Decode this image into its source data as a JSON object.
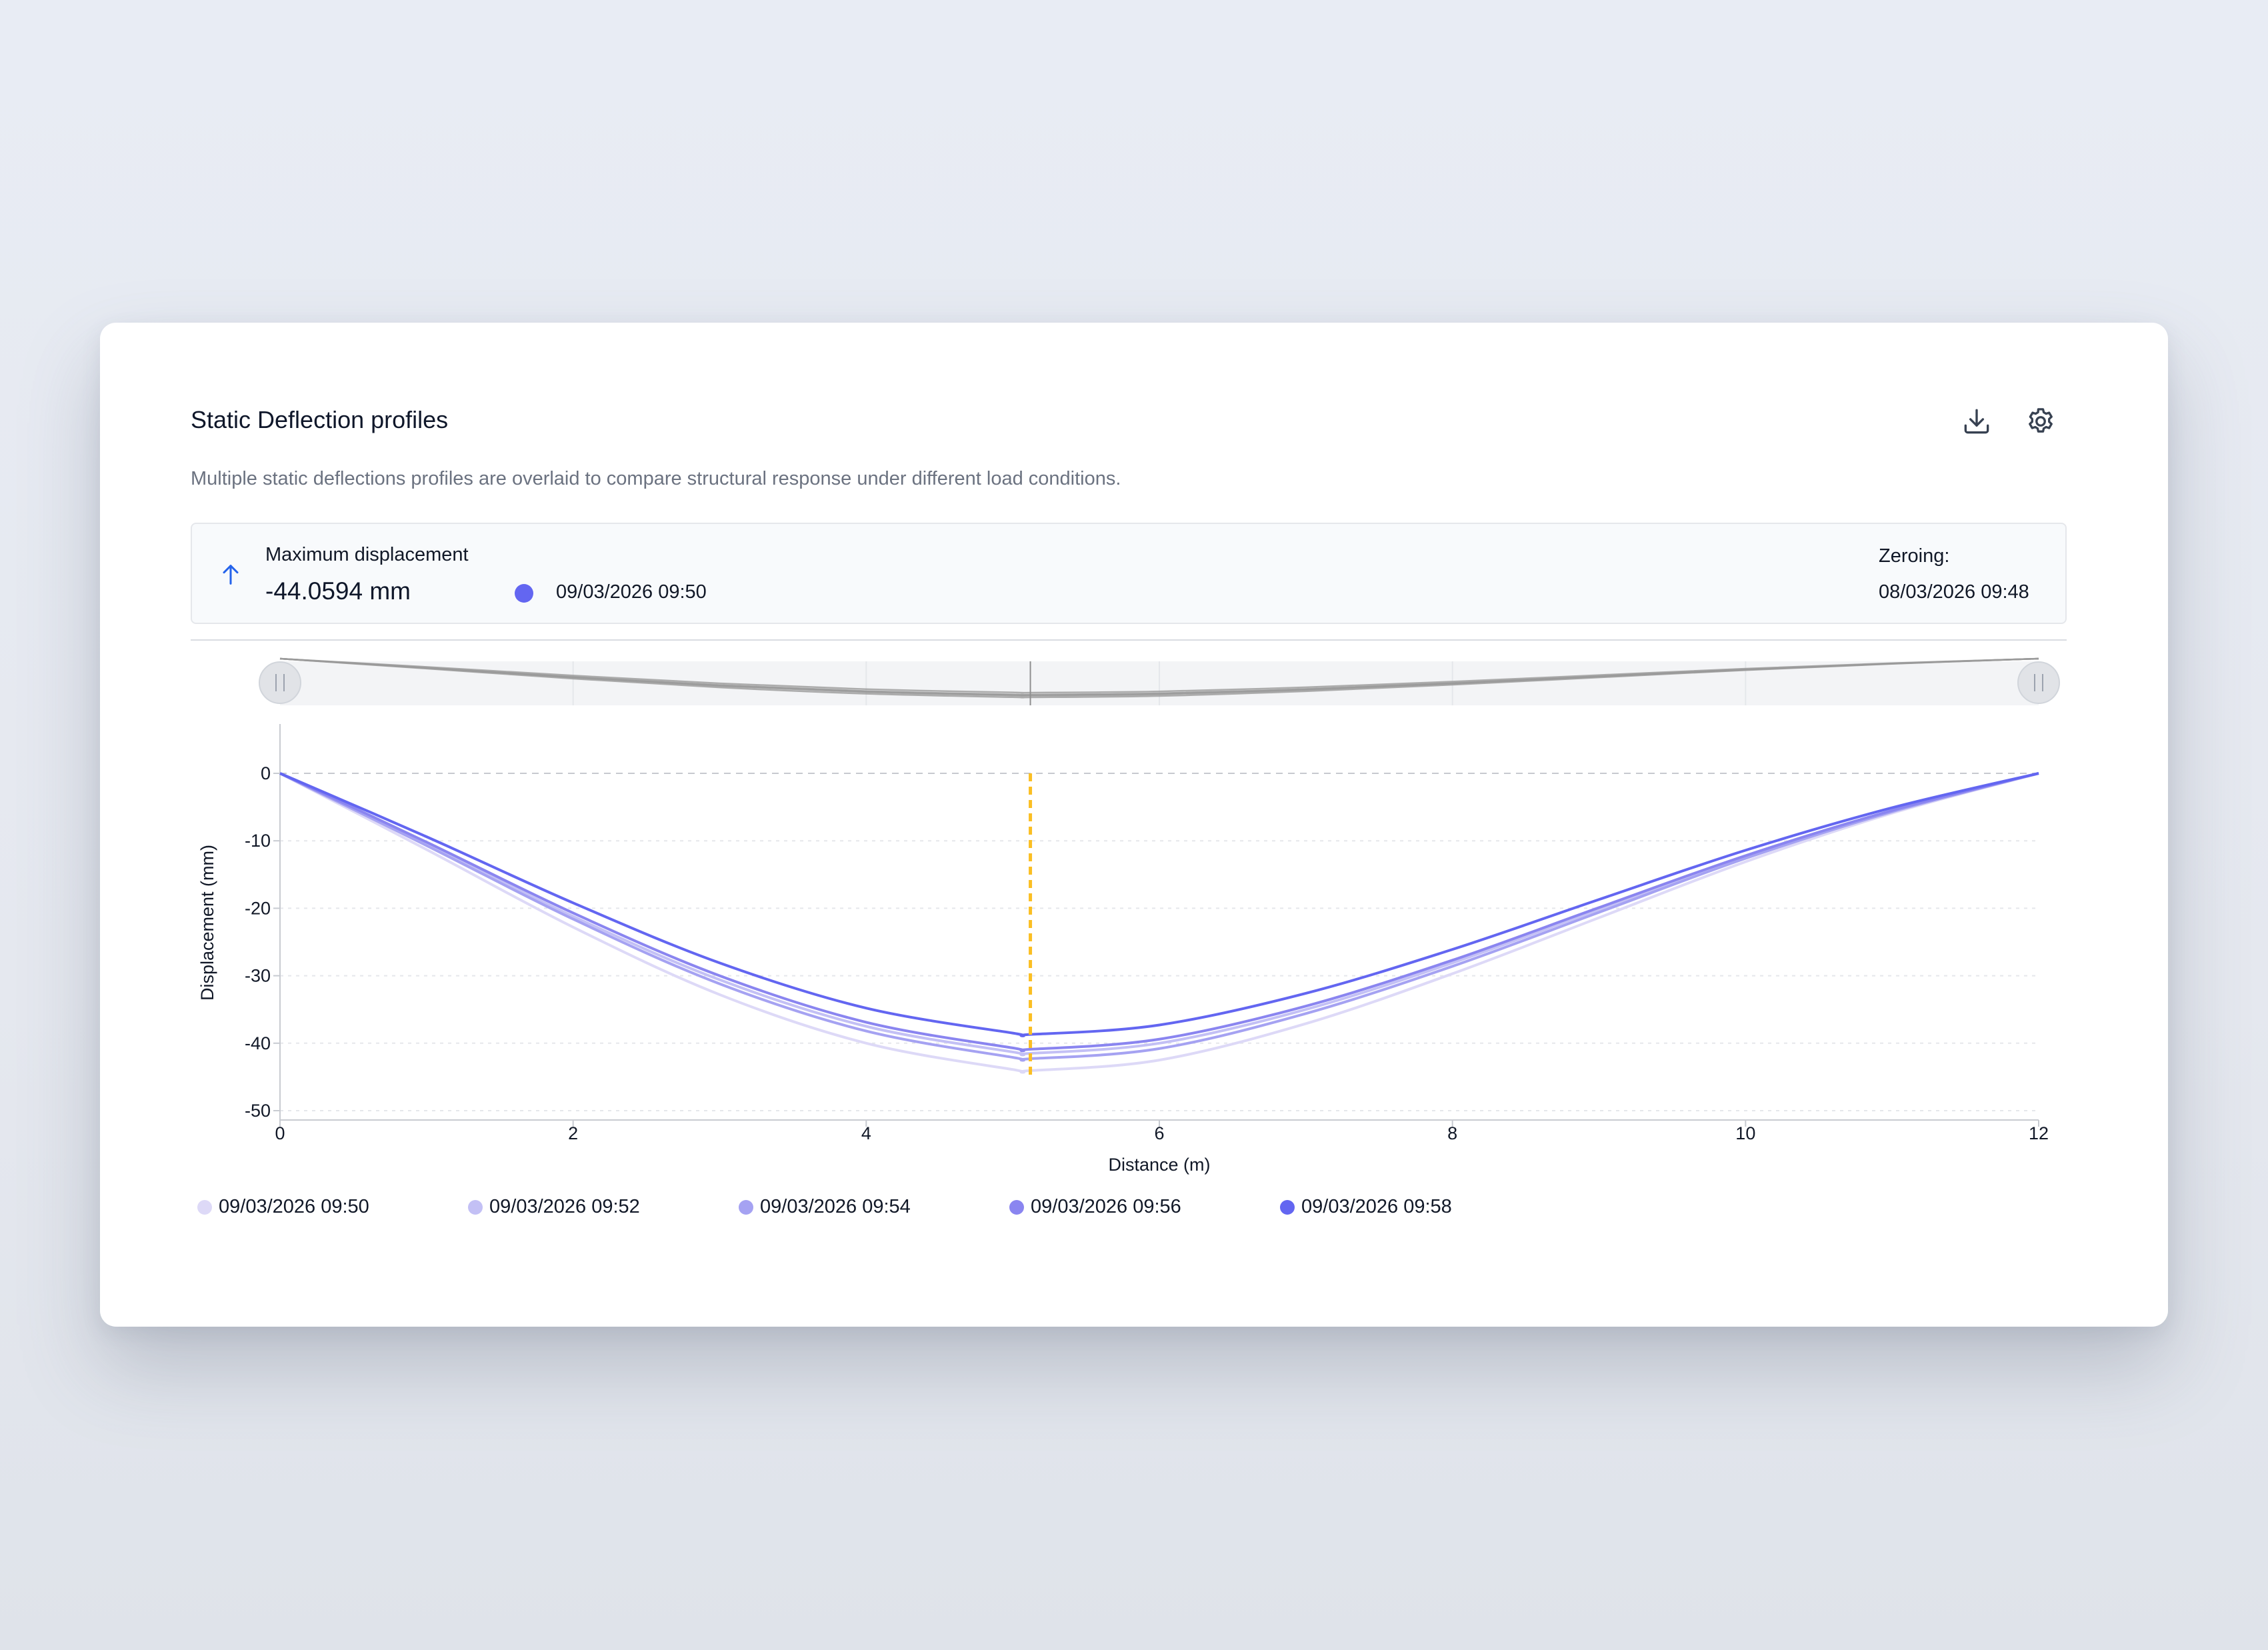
{
  "card": {
    "title": "Static Deflection profiles",
    "subtitle": "Multiple static deflections profiles are overlaid to compare structural response under different load conditions."
  },
  "toolbar": {
    "download_icon": "download-icon",
    "settings_icon": "gear-icon"
  },
  "summary": {
    "arrow_icon": "arrow-up-icon",
    "max_label": "Maximum displacement",
    "max_value": "-44.0594 mm",
    "max_time": "09/03/2026 09:50",
    "max_color": "#6366f1",
    "zeroing_label": "Zeroing:",
    "zeroing_time": "08/03/2026 09:48"
  },
  "colors": {
    "cursor_line": "#fbbf24",
    "grid": "#e5e7eb",
    "zero_line": "#c7c9cf"
  },
  "chart_data": {
    "type": "line",
    "xlabel": "Distance (m)",
    "ylabel": "Displacement (mm)",
    "xlim": [
      0,
      12
    ],
    "ylim": [
      -50,
      0
    ],
    "x_ticks": [
      "0",
      "2",
      "4",
      "6",
      "8",
      "10",
      "12"
    ],
    "y_ticks": [
      "0",
      "-10",
      "-20",
      "-30",
      "-40",
      "-50"
    ],
    "x": [
      0,
      1,
      2,
      3,
      4,
      5,
      5.12,
      6,
      7,
      8,
      9,
      10,
      11,
      12
    ],
    "series": [
      {
        "name": "09/03/2026 09:50",
        "color": "#ddd9f7",
        "values": [
          0,
          -11.3,
          -22.8,
          -32.8,
          -40.0,
          -43.9,
          -44.06,
          -42.5,
          -37.1,
          -29.7,
          -21.4,
          -13.1,
          -5.9,
          0
        ]
      },
      {
        "name": "09/03/2026 09:52",
        "color": "#c3c0f5",
        "values": [
          0,
          -10.5,
          -21.2,
          -30.6,
          -37.5,
          -41.3,
          -41.5,
          -40.0,
          -35.0,
          -28.1,
          -20.2,
          -12.4,
          -5.6,
          0
        ]
      },
      {
        "name": "09/03/2026 09:54",
        "color": "#a5a2f2",
        "values": [
          0,
          -10.7,
          -21.6,
          -31.2,
          -38.2,
          -42.1,
          -42.3,
          -40.8,
          -35.6,
          -28.6,
          -20.6,
          -12.6,
          -5.7,
          0
        ]
      },
      {
        "name": "09/03/2026 09:56",
        "color": "#8a85f0",
        "values": [
          0,
          -10.2,
          -20.7,
          -30.0,
          -36.9,
          -40.7,
          -40.9,
          -39.4,
          -34.5,
          -27.7,
          -19.9,
          -12.2,
          -5.5,
          0
        ]
      },
      {
        "name": "09/03/2026 09:58",
        "color": "#6366f1",
        "values": [
          0,
          -9.4,
          -19.2,
          -28.1,
          -34.8,
          -38.5,
          -38.7,
          -37.3,
          -32.6,
          -26.1,
          -18.7,
          -11.4,
          -5.1,
          0
        ]
      }
    ],
    "cursor_x": 5.12,
    "legend_position": "bottom-left",
    "grid": true
  }
}
